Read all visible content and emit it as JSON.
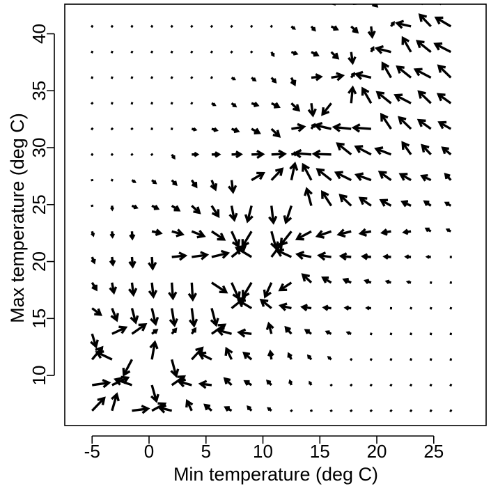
{
  "chart_data": {
    "type": "quiver",
    "xlabel": "Min temperature (deg C)",
    "ylabel": "Max temperature (deg C)",
    "xlim": [
      -7.4,
      29.6
    ],
    "ylim": [
      5.6,
      42.6
    ],
    "xticks": [
      -5,
      0,
      5,
      10,
      15,
      20,
      25
    ],
    "xtick_labels": [
      "-5",
      "0",
      "5",
      "10",
      "15",
      "20",
      "25"
    ],
    "yticks": [
      10,
      15,
      20,
      25,
      30,
      35,
      40
    ],
    "ytick_labels": [
      "10",
      "15",
      "20",
      "25",
      "30",
      "35",
      "40"
    ],
    "grid": false,
    "legend": "none",
    "color": "#000000",
    "arrow_head": "open",
    "grid_x": [
      -5,
      -3.25,
      -1.5,
      0.25,
      2,
      3.75,
      5.5,
      7.25,
      9,
      10.75,
      12.5,
      14.25,
      16,
      17.75,
      19.5,
      21.25,
      23,
      24.75,
      26.5
    ],
    "grid_y": [
      6.9,
      9.15,
      11.4,
      13.65,
      15.9,
      18.15,
      20.4,
      22.65,
      24.9,
      27.15,
      29.4,
      31.65,
      33.9,
      36.15,
      38.4,
      40.65,
      42.9
    ],
    "attractors": [
      [
        -2.5,
        9.5
      ],
      [
        2.5,
        9.5
      ],
      [
        0.8,
        7.2
      ],
      [
        -4.5,
        12
      ],
      [
        -2.5,
        14
      ],
      [
        -1,
        14
      ],
      [
        0.7,
        14
      ],
      [
        2.3,
        14
      ],
      [
        4,
        14
      ],
      [
        4.3,
        12
      ],
      [
        6,
        14
      ],
      [
        8,
        16.5
      ],
      [
        10,
        16.5
      ],
      [
        8,
        21
      ],
      [
        11.2,
        21
      ],
      [
        13,
        29.5
      ],
      [
        14.5,
        32
      ],
      [
        18,
        36.5
      ],
      [
        19.7,
        38.8
      ],
      [
        21.5,
        41
      ],
      [
        22.5,
        43
      ]
    ],
    "vectors_note": "field of short arrows; displacement toward nearest attractor on the max=min+c ridge, magnitude decays with distance"
  }
}
